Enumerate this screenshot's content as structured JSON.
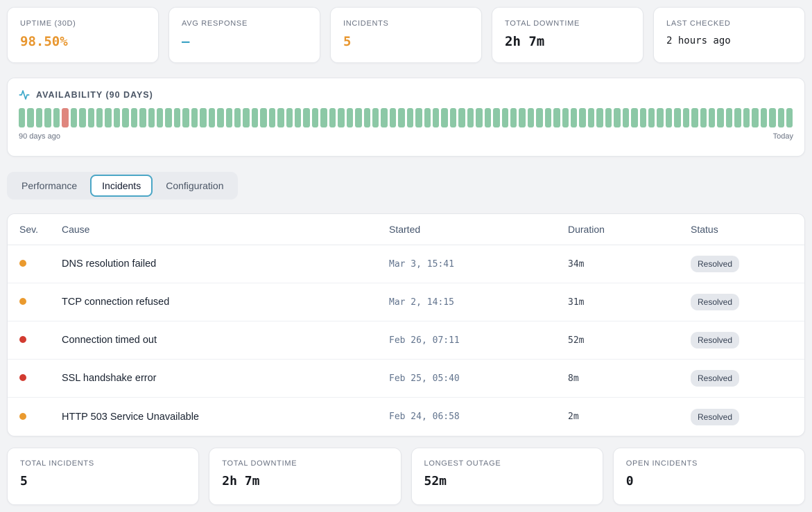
{
  "top_stats": [
    {
      "label": "UPTIME (30D)",
      "value": "98.50%",
      "value_color": "#e8962e"
    },
    {
      "label": "AVG RESPONSE",
      "value": "—",
      "value_color": "#42a6c6"
    },
    {
      "label": "INCIDENTS",
      "value": "5",
      "value_color": "#e8962e"
    },
    {
      "label": "TOTAL DOWNTIME",
      "value": "2h 7m",
      "value_color": "#16191f"
    },
    {
      "label": "LAST CHECKED",
      "value": "2 hours ago",
      "value_color": "#16191f"
    }
  ],
  "availability": {
    "title": "AVAILABILITY (90 DAYS)",
    "icon": "activity-icon",
    "icon_color": "#3ba7c9",
    "total_days": 90,
    "down_day_indexes": [
      5
    ],
    "footer_left": "90 days ago",
    "footer_right": "Today",
    "bar_up_color": "#8cc8a6",
    "bar_down_color": "#df867e"
  },
  "tabs": {
    "active_border_color": "#4ba6c6",
    "items": [
      {
        "label": "Performance",
        "active": false
      },
      {
        "label": "Incidents",
        "active": true
      },
      {
        "label": "Configuration",
        "active": false
      }
    ]
  },
  "incidents_table": {
    "columns": [
      "Sev.",
      "Cause",
      "Started",
      "Duration",
      "Status"
    ],
    "severity_colors": {
      "warning": "#ea9a2e",
      "critical": "#d23b30"
    },
    "rows": [
      {
        "severity": "warning",
        "severity_color": "#ea9a2e",
        "cause": "DNS resolution failed",
        "started": "Mar 3, 15:41",
        "duration": "34m",
        "status": "Resolved"
      },
      {
        "severity": "warning",
        "severity_color": "#ea9a2e",
        "cause": "TCP connection refused",
        "started": "Mar 2, 14:15",
        "duration": "31m",
        "status": "Resolved"
      },
      {
        "severity": "critical",
        "severity_color": "#d23b30",
        "cause": "Connection timed out",
        "started": "Feb 26, 07:11",
        "duration": "52m",
        "status": "Resolved"
      },
      {
        "severity": "critical",
        "severity_color": "#d23b30",
        "cause": "SSL handshake error",
        "started": "Feb 25, 05:40",
        "duration": "8m",
        "status": "Resolved"
      },
      {
        "severity": "warning",
        "severity_color": "#ea9a2e",
        "cause": "HTTP 503 Service Unavailable",
        "started": "Feb 24, 06:58",
        "duration": "2m",
        "status": "Resolved"
      }
    ]
  },
  "bottom_stats": [
    {
      "label": "TOTAL INCIDENTS",
      "value": "5"
    },
    {
      "label": "TOTAL DOWNTIME",
      "value": "2h 7m"
    },
    {
      "label": "LONGEST OUTAGE",
      "value": "52m"
    },
    {
      "label": "OPEN INCIDENTS",
      "value": "0"
    }
  ]
}
